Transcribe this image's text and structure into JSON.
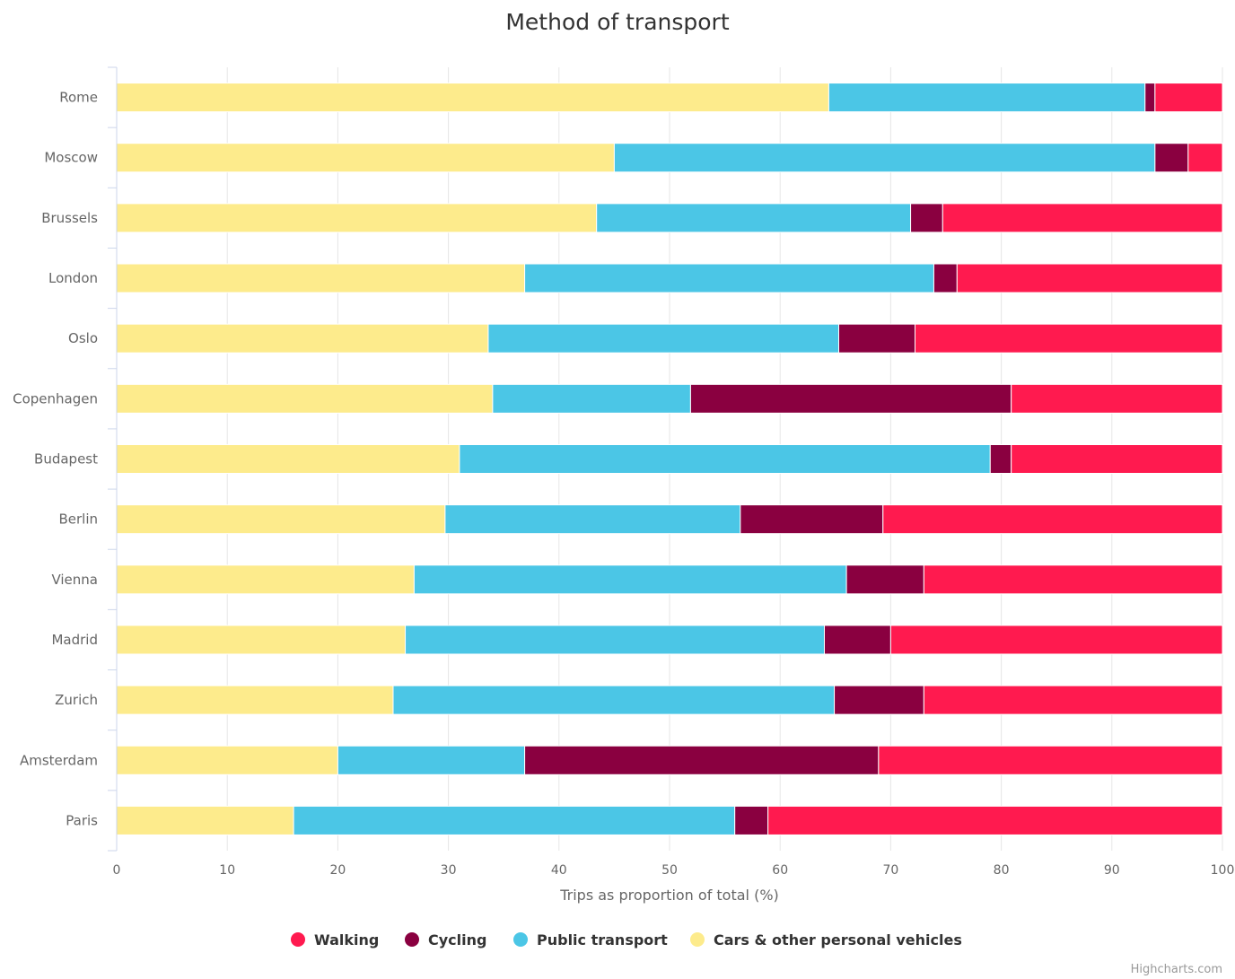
{
  "chart_data": {
    "type": "bar",
    "orientation": "horizontal",
    "stacking": "percent",
    "title": "Method of transport",
    "xlabel": "Trips as proportion of total (%)",
    "ylabel": "",
    "xlim": [
      0,
      100
    ],
    "xticks": [
      0,
      10,
      20,
      30,
      40,
      50,
      60,
      70,
      80,
      90,
      100
    ],
    "grid": true,
    "legend_position": "bottom",
    "categories": [
      "Rome",
      "Moscow",
      "Brussels",
      "London",
      "Oslo",
      "Copenhagen",
      "Budapest",
      "Berlin",
      "Vienna",
      "Madrid",
      "Zurich",
      "Amsterdam",
      "Paris"
    ],
    "series": [
      {
        "name": "Walking",
        "color": "#ff1a4f",
        "values": [
          6.1,
          3.1,
          25.3,
          24,
          27.8,
          19.1,
          19.1,
          30.7,
          27,
          30,
          27,
          31.1,
          41.1
        ]
      },
      {
        "name": "Cycling",
        "color": "#8a0040",
        "values": [
          0.9,
          3.0,
          2.9,
          2.1,
          6.9,
          29,
          1.9,
          12.9,
          7,
          6,
          8.1,
          32,
          3
        ]
      },
      {
        "name": "Public transport",
        "color": "#4bc6e6",
        "values": [
          28.6,
          48.9,
          28.4,
          37,
          31.7,
          17.9,
          48,
          26.7,
          39.1,
          37.9,
          39.9,
          16.9,
          39.9
        ]
      },
      {
        "name": "Cars & other personal vehicles",
        "color": "#fdeb8c",
        "values": [
          64.4,
          45.0,
          43.4,
          36.9,
          33.6,
          34.0,
          31.0,
          29.7,
          26.9,
          26.1,
          25.0,
          20.0,
          16.0
        ]
      }
    ],
    "stack_order_left_to_right": [
      "Cars & other personal vehicles",
      "Public transport",
      "Cycling",
      "Walking"
    ]
  },
  "credits": "Highcharts.com"
}
